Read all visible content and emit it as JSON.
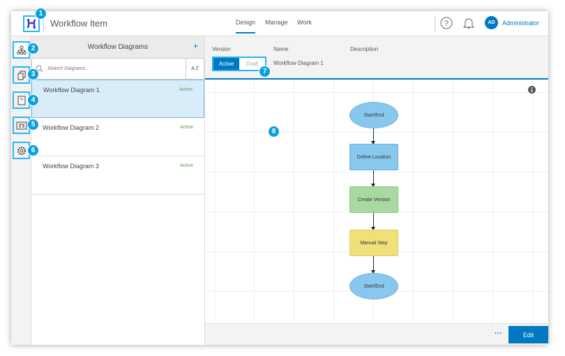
{
  "header": {
    "title": "Workflow Item",
    "tabs": [
      {
        "label": "Design",
        "active": true
      },
      {
        "label": "Manage"
      },
      {
        "label": "Work"
      }
    ],
    "avatar_initials": "AD",
    "user": "Administrator"
  },
  "rail": {
    "items": [
      {
        "icon": "diagram-icon"
      },
      {
        "icon": "documents-icon"
      },
      {
        "icon": "form-icon"
      },
      {
        "icon": "template-icon"
      },
      {
        "icon": "gear-icon"
      }
    ]
  },
  "callouts": [
    "1",
    "2",
    "3",
    "4",
    "5",
    "6",
    "7",
    "8"
  ],
  "panel": {
    "title": "Workflow Diagrams",
    "add": "+",
    "search_placeholder": "Search Diagrams...",
    "sort_label": "A Z",
    "items": [
      {
        "name": "Workflow Diagram 1",
        "status": "Active",
        "selected": true
      },
      {
        "name": "Workflow Diagram 2",
        "status": "Active"
      },
      {
        "name": "Workflow Diagram 3",
        "status": "Active"
      }
    ]
  },
  "version_bar": {
    "version_label": "Version",
    "name_label": "Name",
    "description_label": "Description",
    "active": "Active",
    "draft": "Draft",
    "name_value": "Workflow Diagram 1"
  },
  "diagram": {
    "nodes": [
      {
        "label": "Start/End",
        "shape": "ellipse",
        "color": "#88c8ef"
      },
      {
        "label": "Define Location",
        "shape": "rect",
        "color": "#88c8ef"
      },
      {
        "label": "Create Version",
        "shape": "rect",
        "color": "#a8d9a0"
      },
      {
        "label": "Manual Step",
        "shape": "rect",
        "color": "#f0e07a"
      },
      {
        "label": "Start/End",
        "shape": "ellipse",
        "color": "#88c8ef"
      }
    ]
  },
  "footer": {
    "more": "···",
    "edit": "Edit"
  },
  "colors": {
    "accent": "#0079c1",
    "callout": "#0aa0e0"
  }
}
